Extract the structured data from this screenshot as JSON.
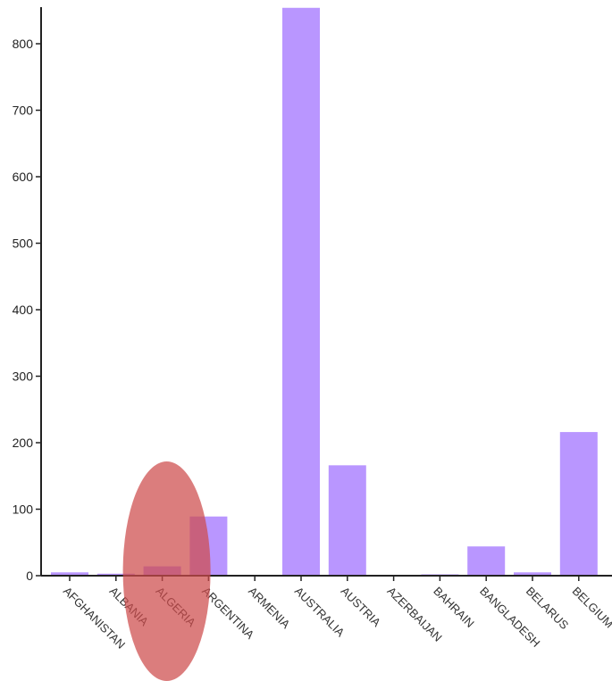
{
  "chart_data": {
    "type": "bar",
    "categories": [
      "AFGHANISTAN",
      "ALBANIA",
      "ALGERIA",
      "ARGENTINA",
      "ARMENIA",
      "AUSTRALIA",
      "AUSTRIA",
      "AZERBAIJAN",
      "BAHRAIN",
      "BANGLADESH",
      "BELARUS",
      "BELGIUM"
    ],
    "values": [
      5,
      3,
      14,
      89,
      1,
      854,
      166,
      1,
      2,
      44,
      5,
      216
    ],
    "ylim": [
      0,
      850
    ],
    "yticks": [
      0,
      100,
      200,
      300,
      400,
      500,
      600,
      700,
      800
    ],
    "grid": false,
    "bar_color": "#b996ff",
    "highlight": {
      "category": "ALGERIA",
      "shape": "ellipse",
      "color": "#cd4b4b"
    }
  }
}
